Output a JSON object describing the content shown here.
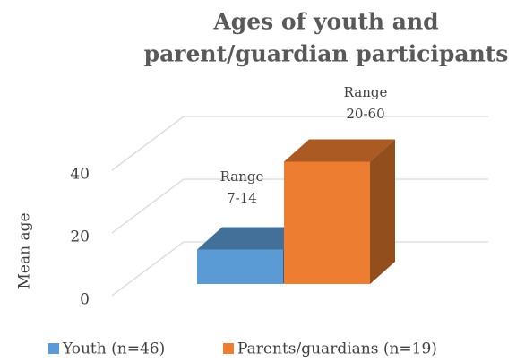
{
  "chart_data": {
    "type": "bar3d",
    "title": [
      "Ages of youth and",
      "parent/guardian participants"
    ],
    "y_label": "Mean age",
    "series": [
      {
        "name": "Youth (n=46)",
        "color": "#5b9bd5",
        "values": [
          11
        ],
        "annotation": [
          "Range",
          "7-14"
        ]
      },
      {
        "name": "Parents/guardians (n=19)",
        "color": "#ed7d31",
        "values": [
          39
        ],
        "annotation": [
          "Range",
          "20-60"
        ]
      }
    ],
    "ylim": [
      0,
      40
    ],
    "yticks": [
      0,
      20,
      40
    ],
    "grid": true,
    "legend": "bottom"
  }
}
